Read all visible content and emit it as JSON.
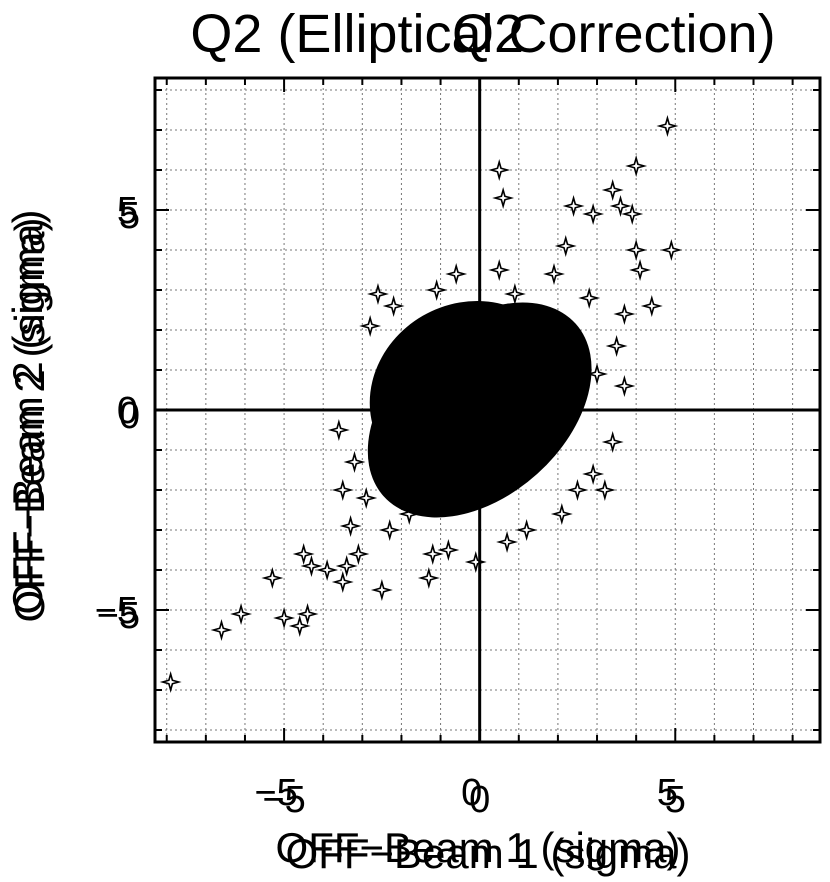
{
  "chart_data": {
    "type": "scatter",
    "title": "Q2 (Elliptical Correction)",
    "title_overlay": "Q2",
    "xlabel": "OFF−Beam 1 (sigma)",
    "ylabel": "OFF−Beam 2 (sigma)",
    "xlim": [
      -8.3,
      8.7
    ],
    "ylim": [
      -8.3,
      8.3
    ],
    "xticks": [
      -5,
      0,
      5
    ],
    "yticks": [
      -5,
      0,
      5
    ],
    "grid": true,
    "marker": "four-point-star",
    "zero_lines": true,
    "dense_cloud": {
      "center": [
        0,
        0
      ],
      "approx_extent_x": [
        -3,
        3
      ],
      "approx_extent_y": [
        -2.8,
        3
      ],
      "correlation": "positive"
    },
    "points": [
      [
        -7.9,
        -6.8
      ],
      [
        -6.6,
        -5.5
      ],
      [
        -6.1,
        -5.1
      ],
      [
        -5.3,
        -4.2
      ],
      [
        -5.0,
        -5.2
      ],
      [
        -4.6,
        -5.4
      ],
      [
        -4.4,
        -5.1
      ],
      [
        -4.5,
        -3.6
      ],
      [
        -4.3,
        -3.9
      ],
      [
        -3.9,
        -4.0
      ],
      [
        -3.5,
        -4.3
      ],
      [
        -3.4,
        -3.9
      ],
      [
        -3.3,
        -2.9
      ],
      [
        -3.1,
        -3.6
      ],
      [
        -2.5,
        -4.5
      ],
      [
        -2.3,
        -3.0
      ],
      [
        -1.3,
        -4.2
      ],
      [
        -1.2,
        -3.6
      ],
      [
        -0.1,
        -3.8
      ],
      [
        -3.5,
        -2.0
      ],
      [
        -3.6,
        -0.5
      ],
      [
        -3.2,
        -1.3
      ],
      [
        -2.8,
        2.1
      ],
      [
        -2.6,
        2.9
      ],
      [
        -2.2,
        2.6
      ],
      [
        -1.1,
        3.0
      ],
      [
        -0.6,
        3.4
      ],
      [
        0.5,
        6.0
      ],
      [
        0.6,
        5.3
      ],
      [
        0.5,
        3.5
      ],
      [
        2.4,
        5.1
      ],
      [
        2.9,
        4.9
      ],
      [
        3.4,
        5.5
      ],
      [
        3.6,
        5.1
      ],
      [
        3.9,
        4.9
      ],
      [
        4.0,
        6.1
      ],
      [
        4.8,
        7.1
      ],
      [
        4.9,
        4.0
      ],
      [
        4.0,
        4.0
      ],
      [
        4.4,
        2.6
      ],
      [
        4.1,
        3.5
      ],
      [
        3.7,
        2.4
      ],
      [
        3.7,
        0.6
      ],
      [
        3.5,
        1.6
      ],
      [
        3.4,
        -0.8
      ],
      [
        3.2,
        -2.0
      ],
      [
        2.9,
        -1.6
      ],
      [
        2.1,
        -2.6
      ],
      [
        1.2,
        -3.0
      ],
      [
        3.0,
        0.9
      ],
      [
        2.8,
        2.8
      ],
      [
        1.9,
        3.4
      ],
      [
        2.2,
        4.1
      ],
      [
        0.9,
        2.9
      ],
      [
        -1.8,
        -2.6
      ],
      [
        -2.9,
        -2.2
      ],
      [
        -0.8,
        -3.5
      ],
      [
        0.7,
        -3.3
      ],
      [
        2.5,
        -2.0
      ],
      [
        -2.0,
        1.6
      ]
    ]
  }
}
